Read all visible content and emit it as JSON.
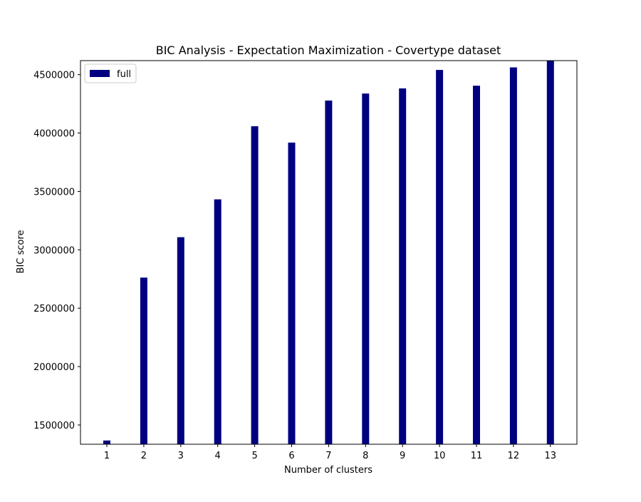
{
  "chart_data": {
    "type": "bar",
    "title": "BIC Analysis - Expectation Maximization - Covertype dataset",
    "xlabel": "Number of clusters",
    "ylabel": "BIC score",
    "categories": [
      "1",
      "2",
      "3",
      "4",
      "5",
      "6",
      "7",
      "8",
      "9",
      "10",
      "11",
      "12",
      "13"
    ],
    "series": [
      {
        "name": "full",
        "color": "#000080",
        "values": [
          1367000,
          2762000,
          3108000,
          3432000,
          4058000,
          3918000,
          4278000,
          4338000,
          4382000,
          4540000,
          4405000,
          4562000,
          4620000
        ]
      }
    ],
    "ylim": [
      1335000,
      4620000
    ],
    "yticks": [
      1500000,
      2000000,
      2500000,
      3000000,
      3500000,
      4000000,
      4500000
    ],
    "legend": {
      "position": "upper-left"
    },
    "grid": false
  }
}
